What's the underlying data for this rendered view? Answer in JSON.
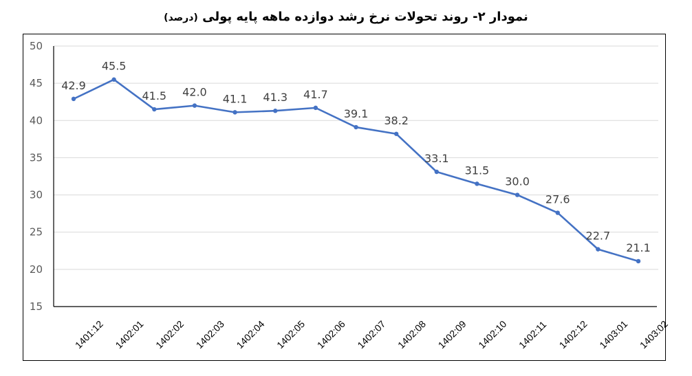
{
  "title": {
    "main": "نمودار ۲- روند تحولات نرخ رشد دوازده ماهه پایه پولی",
    "unit": "(درصد)"
  },
  "colors": {
    "line": "#4472C4",
    "grid": "#D9D9D9",
    "label": "#404040",
    "highlight_label": "#C00000"
  },
  "chart_data": {
    "type": "line",
    "title": "نمودار ۲- روند تحولات نرخ رشد دوازده ماهه پایه پولی (درصد)",
    "xlabel": "",
    "ylabel": "",
    "ylim": [
      15,
      50
    ],
    "yticks": [
      15,
      20,
      25,
      30,
      35,
      40,
      45,
      50
    ],
    "grid": true,
    "legend": null,
    "categories": [
      "1401:12",
      "1402:01",
      "1402:02",
      "1402:03",
      "1402:04",
      "1402:05",
      "1402:06",
      "1402:07",
      "1402:08",
      "1402:09",
      "1402:10",
      "1402:11",
      "1402:12",
      "1403:01",
      "1403:02"
    ],
    "series": [
      {
        "name": "نرخ رشد دوازده ماهه پایه پولی",
        "values": [
          42.9,
          45.5,
          41.5,
          42.0,
          41.1,
          41.3,
          41.7,
          39.1,
          38.2,
          33.1,
          31.5,
          30.0,
          27.6,
          22.7,
          21.1
        ],
        "labels": [
          "42.9",
          "45.5",
          "41.5",
          "42.0",
          "41.1",
          "41.3",
          "41.7",
          "39.1",
          "38.2",
          "33.1",
          "31.5",
          "30.0",
          "27.6",
          "22.7",
          "21.1"
        ]
      }
    ],
    "annotations": [
      {
        "category": "1403:02",
        "text": "21.1",
        "color": "#C00000"
      }
    ]
  }
}
